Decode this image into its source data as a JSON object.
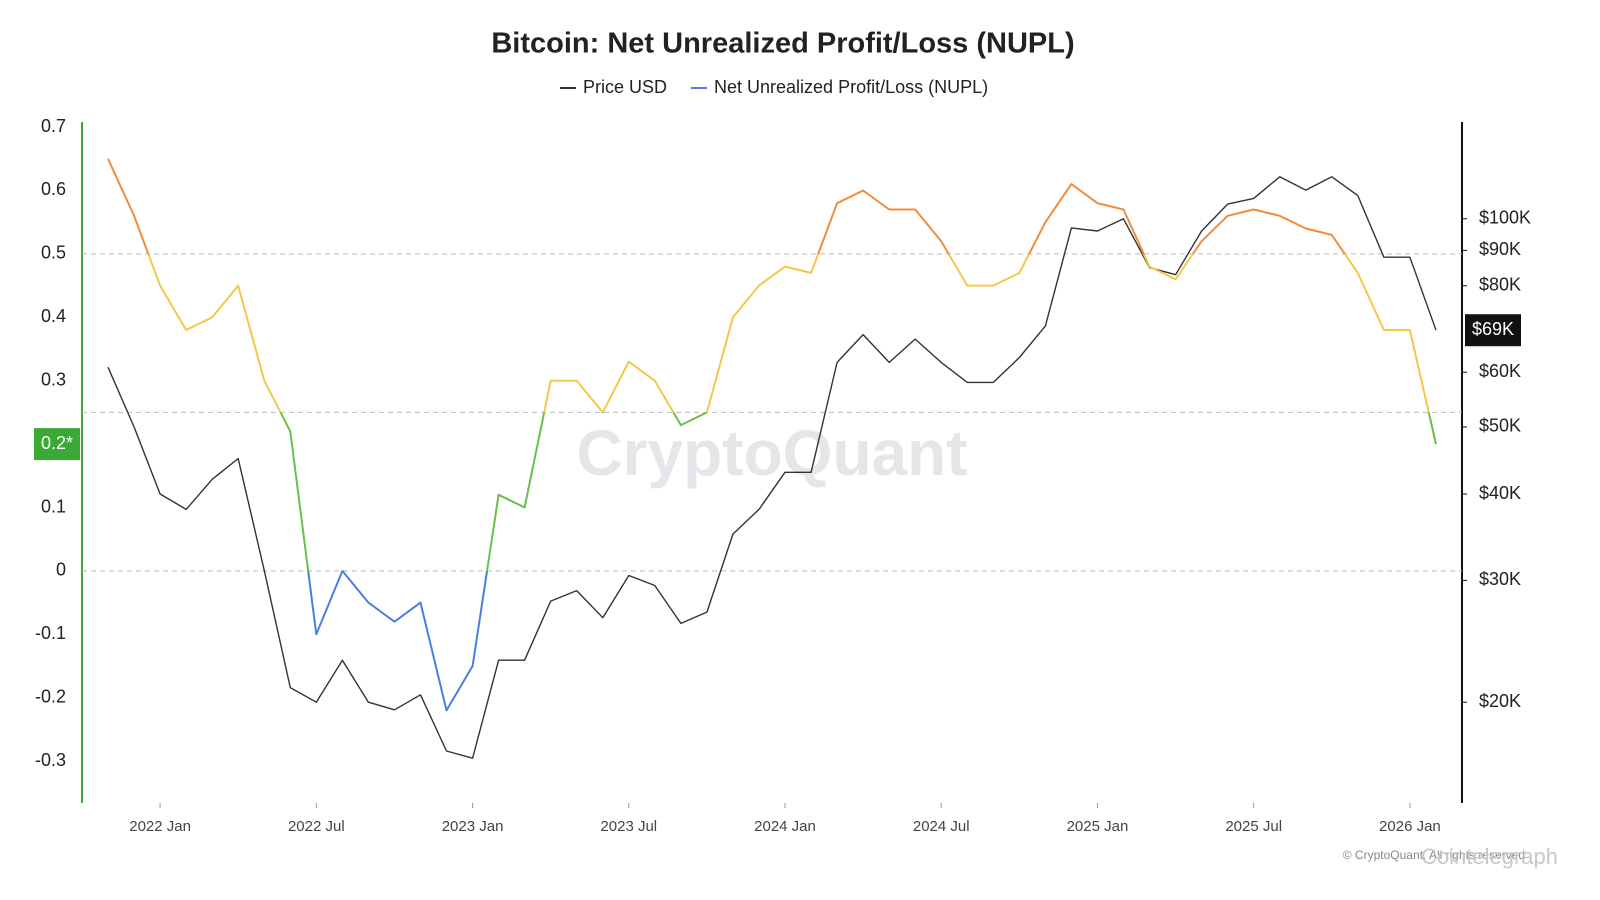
{
  "chart_data": {
    "type": "line",
    "title": "Bitcoin: Net Unrealized Profit/Loss (NUPL)",
    "watermark": "CryptoQuant",
    "footer": "© CryptoQuant. All rights reserved",
    "source": "Cointelegraph",
    "x": [
      "2021-11",
      "2021-12",
      "2022-01",
      "2022-02",
      "2022-03",
      "2022-04",
      "2022-05",
      "2022-06",
      "2022-07",
      "2022-08",
      "2022-09",
      "2022-10",
      "2022-11",
      "2022-12",
      "2023-01",
      "2023-02",
      "2023-03",
      "2023-04",
      "2023-05",
      "2023-06",
      "2023-07",
      "2023-08",
      "2023-09",
      "2023-10",
      "2023-11",
      "2023-12",
      "2024-01",
      "2024-02",
      "2024-03",
      "2024-04",
      "2024-05",
      "2024-06",
      "2024-07",
      "2024-08",
      "2024-09",
      "2024-10",
      "2024-11",
      "2024-12",
      "2025-01",
      "2025-02",
      "2025-03",
      "2025-04",
      "2025-05",
      "2025-06",
      "2025-07",
      "2025-08",
      "2025-09",
      "2025-10",
      "2025-11",
      "2025-12",
      "2026-01",
      "2026-02"
    ],
    "xlim": [
      "2021-10",
      "2026-03"
    ],
    "xticks": [
      {
        "value": "2022-01",
        "label": "2022 Jan"
      },
      {
        "value": "2022-07",
        "label": "2022 Jul"
      },
      {
        "value": "2023-01",
        "label": "2023 Jan"
      },
      {
        "value": "2023-07",
        "label": "2023 Jul"
      },
      {
        "value": "2024-01",
        "label": "2024 Jan"
      },
      {
        "value": "2024-07",
        "label": "2024 Jul"
      },
      {
        "value": "2025-01",
        "label": "2025 Jan"
      },
      {
        "value": "2025-07",
        "label": "2025 Jul"
      },
      {
        "value": "2026-01",
        "label": "2026 Jan"
      }
    ],
    "ylim": [
      -0.366,
      0.708
    ],
    "yticks": [
      -0.3,
      -0.2,
      -0.1,
      0,
      0.1,
      0.2,
      0.3,
      0.4,
      0.5,
      0.6,
      0.7
    ],
    "y2lim": [
      14300,
      138000
    ],
    "y2scale": "log",
    "y2ticks": [
      {
        "value": 20000,
        "label": "$20K"
      },
      {
        "value": 30000,
        "label": "$30K"
      },
      {
        "value": 40000,
        "label": "$40K"
      },
      {
        "value": 50000,
        "label": "$50K"
      },
      {
        "value": 60000,
        "label": "$60K"
      },
      {
        "value": 80000,
        "label": "$80K"
      },
      {
        "value": 90000,
        "label": "$90K"
      },
      {
        "value": 100000,
        "label": "$100K"
      }
    ],
    "grid_lines": [
      0,
      0.25,
      0.5
    ],
    "legend": "top",
    "series": [
      {
        "name": "Price USD",
        "color": "#333333",
        "axis": "y2",
        "values": [
          61000,
          50000,
          40000,
          38000,
          42000,
          45000,
          31000,
          21000,
          20000,
          23000,
          20000,
          19500,
          20500,
          17000,
          16600,
          23000,
          23000,
          28000,
          29000,
          26500,
          30500,
          29500,
          26000,
          27000,
          35000,
          38000,
          43000,
          43000,
          62000,
          68000,
          62000,
          67000,
          62000,
          58000,
          58000,
          63000,
          70000,
          97000,
          96000,
          100000,
          85000,
          83000,
          96000,
          105000,
          107000,
          115000,
          110000,
          115000,
          108000,
          88000,
          88000,
          69000
        ]
      },
      {
        "name": "Net Unrealized Profit/Loss (NUPL)",
        "color": "#4a7ee0",
        "values": [
          0.65,
          0.56,
          0.45,
          0.38,
          0.4,
          0.45,
          0.3,
          0.22,
          -0.1,
          0.0,
          -0.05,
          -0.08,
          -0.05,
          -0.22,
          -0.15,
          0.12,
          0.1,
          0.3,
          0.3,
          0.25,
          0.33,
          0.3,
          0.23,
          0.25,
          0.4,
          0.45,
          0.48,
          0.47,
          0.58,
          0.6,
          0.57,
          0.57,
          0.52,
          0.45,
          0.45,
          0.47,
          0.55,
          0.61,
          0.58,
          0.57,
          0.48,
          0.46,
          0.52,
          0.56,
          0.57,
          0.56,
          0.54,
          0.53,
          0.47,
          0.38,
          0.38,
          0.2
        ],
        "zones": [
          {
            "below": 0,
            "color": "#4a7ee0"
          },
          {
            "below": 0.25,
            "color": "#6abf4b"
          },
          {
            "below": 0.5,
            "color": "#f2c84b"
          },
          {
            "color": "#f08c3c"
          }
        ]
      }
    ],
    "annotations": [
      {
        "text": "0.2*",
        "value": 0.2,
        "axis": "y",
        "color": "#3aa935"
      },
      {
        "text": "$69K",
        "value": 69000,
        "axis": "y2",
        "color": "#111111"
      }
    ]
  }
}
